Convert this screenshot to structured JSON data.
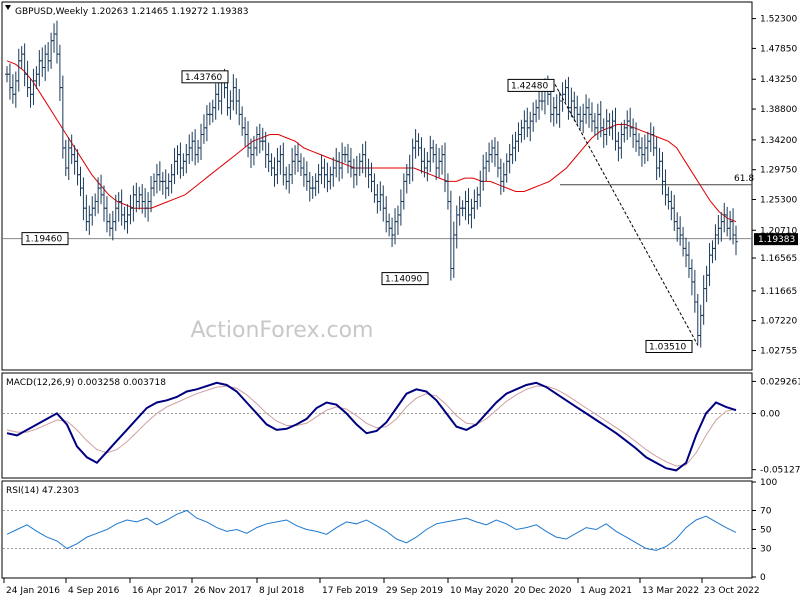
{
  "chart_data": [
    {
      "type": "ohlc",
      "title": "GBPUSD,Weekly  1.20263 1.21465 1.19272 1.19383",
      "ylim": [
        1.0,
        1.5463
      ],
      "y_ticks": [
        "1.52300",
        "1.47850",
        "1.43250",
        "1.38800",
        "1.34200",
        "1.29750",
        "1.25300",
        "1.20710",
        "1.16565",
        "1.11665",
        "1.07220",
        "1.02755"
      ],
      "last_price": "1.19383",
      "x_ticks": [
        "24 Jan 2016",
        "4 Sep 2016",
        "16 Apr 2017",
        "26 Nov 2017",
        "8 Jul 2018",
        "17 Feb 2019",
        "29 Sep 2019",
        "10 May 2020",
        "20 Dec 2020",
        "1 Aug 2021",
        "13 Mar 2022",
        "23 Oct 2022"
      ],
      "annotations": [
        {
          "text": "1.43760",
          "x": "26 Nov 2017",
          "y": 1.4376
        },
        {
          "text": "1.42480",
          "x": "20 Dec 2020",
          "y": 1.4248
        },
        {
          "text": "1.19460",
          "x": "Oct 2016",
          "y": 1.1946
        },
        {
          "text": "1.14090",
          "x": "Mar 2020",
          "y": 1.1409
        },
        {
          "text": "1.03510",
          "x": "Sep 2022",
          "y": 1.0351
        },
        {
          "text": "61.8",
          "y": 1.275
        }
      ],
      "horizontal_lines": [
        1.1946,
        1.275
      ],
      "trend_line": [
        {
          "x": "1 Jun 2021",
          "y": 1.4248
        },
        {
          "x": "Sep 2022",
          "y": 1.0351
        }
      ],
      "series": [
        {
          "name": "close",
          "values": [
            1.44,
            1.42,
            1.41,
            1.43,
            1.46,
            1.47,
            1.44,
            1.42,
            1.41,
            1.43,
            1.44,
            1.46,
            1.45,
            1.47,
            1.46,
            1.49,
            1.5,
            1.47,
            1.42,
            1.33,
            1.3,
            1.33,
            1.32,
            1.31,
            1.29,
            1.27,
            1.24,
            1.22,
            1.23,
            1.24,
            1.25,
            1.27,
            1.26,
            1.24,
            1.22,
            1.21,
            1.22,
            1.24,
            1.25,
            1.23,
            1.22,
            1.23,
            1.24,
            1.26,
            1.25,
            1.26,
            1.25,
            1.24,
            1.25,
            1.27,
            1.28,
            1.29,
            1.28,
            1.28,
            1.27,
            1.28,
            1.29,
            1.31,
            1.32,
            1.3,
            1.31,
            1.32,
            1.33,
            1.34,
            1.32,
            1.33,
            1.35,
            1.36,
            1.38,
            1.38,
            1.39,
            1.41,
            1.4,
            1.43,
            1.42,
            1.39,
            1.4,
            1.42,
            1.4,
            1.38,
            1.36,
            1.35,
            1.33,
            1.32,
            1.33,
            1.35,
            1.34,
            1.34,
            1.32,
            1.31,
            1.3,
            1.29,
            1.31,
            1.32,
            1.29,
            1.28,
            1.29,
            1.31,
            1.32,
            1.31,
            1.3,
            1.29,
            1.28,
            1.27,
            1.27,
            1.28,
            1.29,
            1.3,
            1.29,
            1.28,
            1.29,
            1.3,
            1.31,
            1.3,
            1.32,
            1.32,
            1.31,
            1.3,
            1.29,
            1.3,
            1.31,
            1.32,
            1.3,
            1.29,
            1.28,
            1.26,
            1.25,
            1.26,
            1.24,
            1.22,
            1.21,
            1.2,
            1.22,
            1.23,
            1.25,
            1.28,
            1.29,
            1.3,
            1.33,
            1.34,
            1.33,
            1.31,
            1.3,
            1.31,
            1.33,
            1.32,
            1.3,
            1.31,
            1.32,
            1.28,
            1.25,
            1.15,
            1.2,
            1.23,
            1.24,
            1.24,
            1.25,
            1.23,
            1.24,
            1.25,
            1.26,
            1.28,
            1.3,
            1.31,
            1.32,
            1.33,
            1.32,
            1.3,
            1.28,
            1.29,
            1.31,
            1.32,
            1.33,
            1.34,
            1.35,
            1.36,
            1.37,
            1.36,
            1.37,
            1.38,
            1.39,
            1.4,
            1.4,
            1.42,
            1.41,
            1.38,
            1.39,
            1.38,
            1.4,
            1.41,
            1.42,
            1.39,
            1.4,
            1.39,
            1.38,
            1.37,
            1.38,
            1.39,
            1.38,
            1.37,
            1.36,
            1.38,
            1.36,
            1.35,
            1.37,
            1.36,
            1.37,
            1.34,
            1.33,
            1.35,
            1.36,
            1.37,
            1.36,
            1.35,
            1.34,
            1.33,
            1.32,
            1.33,
            1.34,
            1.35,
            1.33,
            1.3,
            1.31,
            1.28,
            1.26,
            1.25,
            1.24,
            1.22,
            1.21,
            1.2,
            1.18,
            1.17,
            1.15,
            1.13,
            1.1,
            1.05,
            1.08,
            1.12,
            1.14,
            1.17,
            1.18,
            1.2,
            1.21,
            1.22,
            1.23,
            1.21,
            1.22,
            1.2,
            1.19
          ]
        },
        {
          "name": "MA",
          "values": [
            1.46,
            1.455,
            1.445,
            1.43,
            1.41,
            1.39,
            1.37,
            1.35,
            1.33,
            1.31,
            1.29,
            1.275,
            1.26,
            1.25,
            1.245,
            1.24,
            1.24,
            1.24,
            1.245,
            1.25,
            1.255,
            1.26,
            1.27,
            1.28,
            1.29,
            1.3,
            1.31,
            1.32,
            1.33,
            1.34,
            1.345,
            1.35,
            1.35,
            1.345,
            1.34,
            1.33,
            1.325,
            1.32,
            1.315,
            1.31,
            1.305,
            1.3,
            1.3,
            1.3,
            1.3,
            1.3,
            1.3,
            1.3,
            1.3,
            1.295,
            1.29,
            1.285,
            1.28,
            1.28,
            1.285,
            1.285,
            1.28,
            1.28,
            1.275,
            1.27,
            1.265,
            1.265,
            1.27,
            1.275,
            1.28,
            1.29,
            1.3,
            1.315,
            1.33,
            1.345,
            1.355,
            1.36,
            1.365,
            1.365,
            1.36,
            1.355,
            1.35,
            1.345,
            1.34,
            1.33,
            1.31,
            1.29,
            1.27,
            1.25,
            1.235,
            1.225,
            1.22
          ]
        }
      ]
    },
    {
      "type": "line",
      "title": "MACD(12,26,9) 0.003258 0.003718",
      "y_ticks": [
        "0.029261",
        "0.00",
        "-0.051279"
      ],
      "ylim": [
        -0.058,
        0.036
      ],
      "series": [
        {
          "name": "MACD",
          "values": [
            -0.018,
            -0.02,
            -0.015,
            -0.01,
            -0.005,
            0.0,
            -0.01,
            -0.03,
            -0.04,
            -0.045,
            -0.035,
            -0.025,
            -0.015,
            -0.005,
            0.005,
            0.01,
            0.012,
            0.015,
            0.02,
            0.022,
            0.025,
            0.028,
            0.026,
            0.02,
            0.01,
            0.0,
            -0.01,
            -0.015,
            -0.014,
            -0.01,
            -0.005,
            0.005,
            0.01,
            0.008,
            0.0,
            -0.01,
            -0.018,
            -0.016,
            -0.008,
            0.005,
            0.018,
            0.022,
            0.02,
            0.012,
            0.0,
            -0.012,
            -0.015,
            -0.01,
            0.0,
            0.01,
            0.018,
            0.022,
            0.026,
            0.028,
            0.024,
            0.018,
            0.012,
            0.006,
            0.0,
            -0.006,
            -0.012,
            -0.018,
            -0.025,
            -0.032,
            -0.04,
            -0.045,
            -0.05,
            -0.052,
            -0.045,
            -0.02,
            0.0,
            0.01,
            0.006,
            0.003
          ]
        },
        {
          "name": "Signal",
          "values": [
            -0.015,
            -0.017,
            -0.017,
            -0.014,
            -0.01,
            -0.006,
            -0.007,
            -0.015,
            -0.025,
            -0.033,
            -0.036,
            -0.033,
            -0.026,
            -0.017,
            -0.008,
            0.0,
            0.006,
            0.01,
            0.014,
            0.018,
            0.021,
            0.024,
            0.025,
            0.023,
            0.017,
            0.009,
            0.0,
            -0.007,
            -0.011,
            -0.011,
            -0.009,
            -0.003,
            0.003,
            0.006,
            0.004,
            -0.002,
            -0.009,
            -0.013,
            -0.012,
            -0.005,
            0.006,
            0.014,
            0.018,
            0.016,
            0.008,
            -0.002,
            -0.009,
            -0.01,
            -0.005,
            0.003,
            0.011,
            0.017,
            0.022,
            0.025,
            0.025,
            0.022,
            0.017,
            0.011,
            0.005,
            -0.001,
            -0.007,
            -0.013,
            -0.019,
            -0.026,
            -0.033,
            -0.039,
            -0.044,
            -0.048,
            -0.047,
            -0.036,
            -0.02,
            -0.006,
            0.002,
            0.004
          ]
        }
      ]
    },
    {
      "type": "line",
      "title": "RSI(14) 47.2303",
      "y_ticks": [
        "100",
        "70",
        "50",
        "30",
        "0"
      ],
      "ylim": [
        0,
        100
      ],
      "series": [
        {
          "name": "RSI",
          "values": [
            45,
            50,
            55,
            48,
            42,
            38,
            30,
            35,
            42,
            46,
            50,
            56,
            60,
            58,
            62,
            55,
            60,
            66,
            70,
            62,
            58,
            52,
            48,
            50,
            46,
            52,
            56,
            58,
            60,
            54,
            50,
            48,
            45,
            52,
            58,
            56,
            60,
            54,
            48,
            40,
            36,
            42,
            50,
            56,
            58,
            60,
            62,
            58,
            55,
            60,
            56,
            50,
            52,
            55,
            48,
            42,
            40,
            46,
            52,
            50,
            56,
            48,
            42,
            36,
            30,
            28,
            32,
            40,
            52,
            60,
            64,
            58,
            52,
            47
          ]
        }
      ]
    }
  ],
  "watermark": "ActionForex.com"
}
